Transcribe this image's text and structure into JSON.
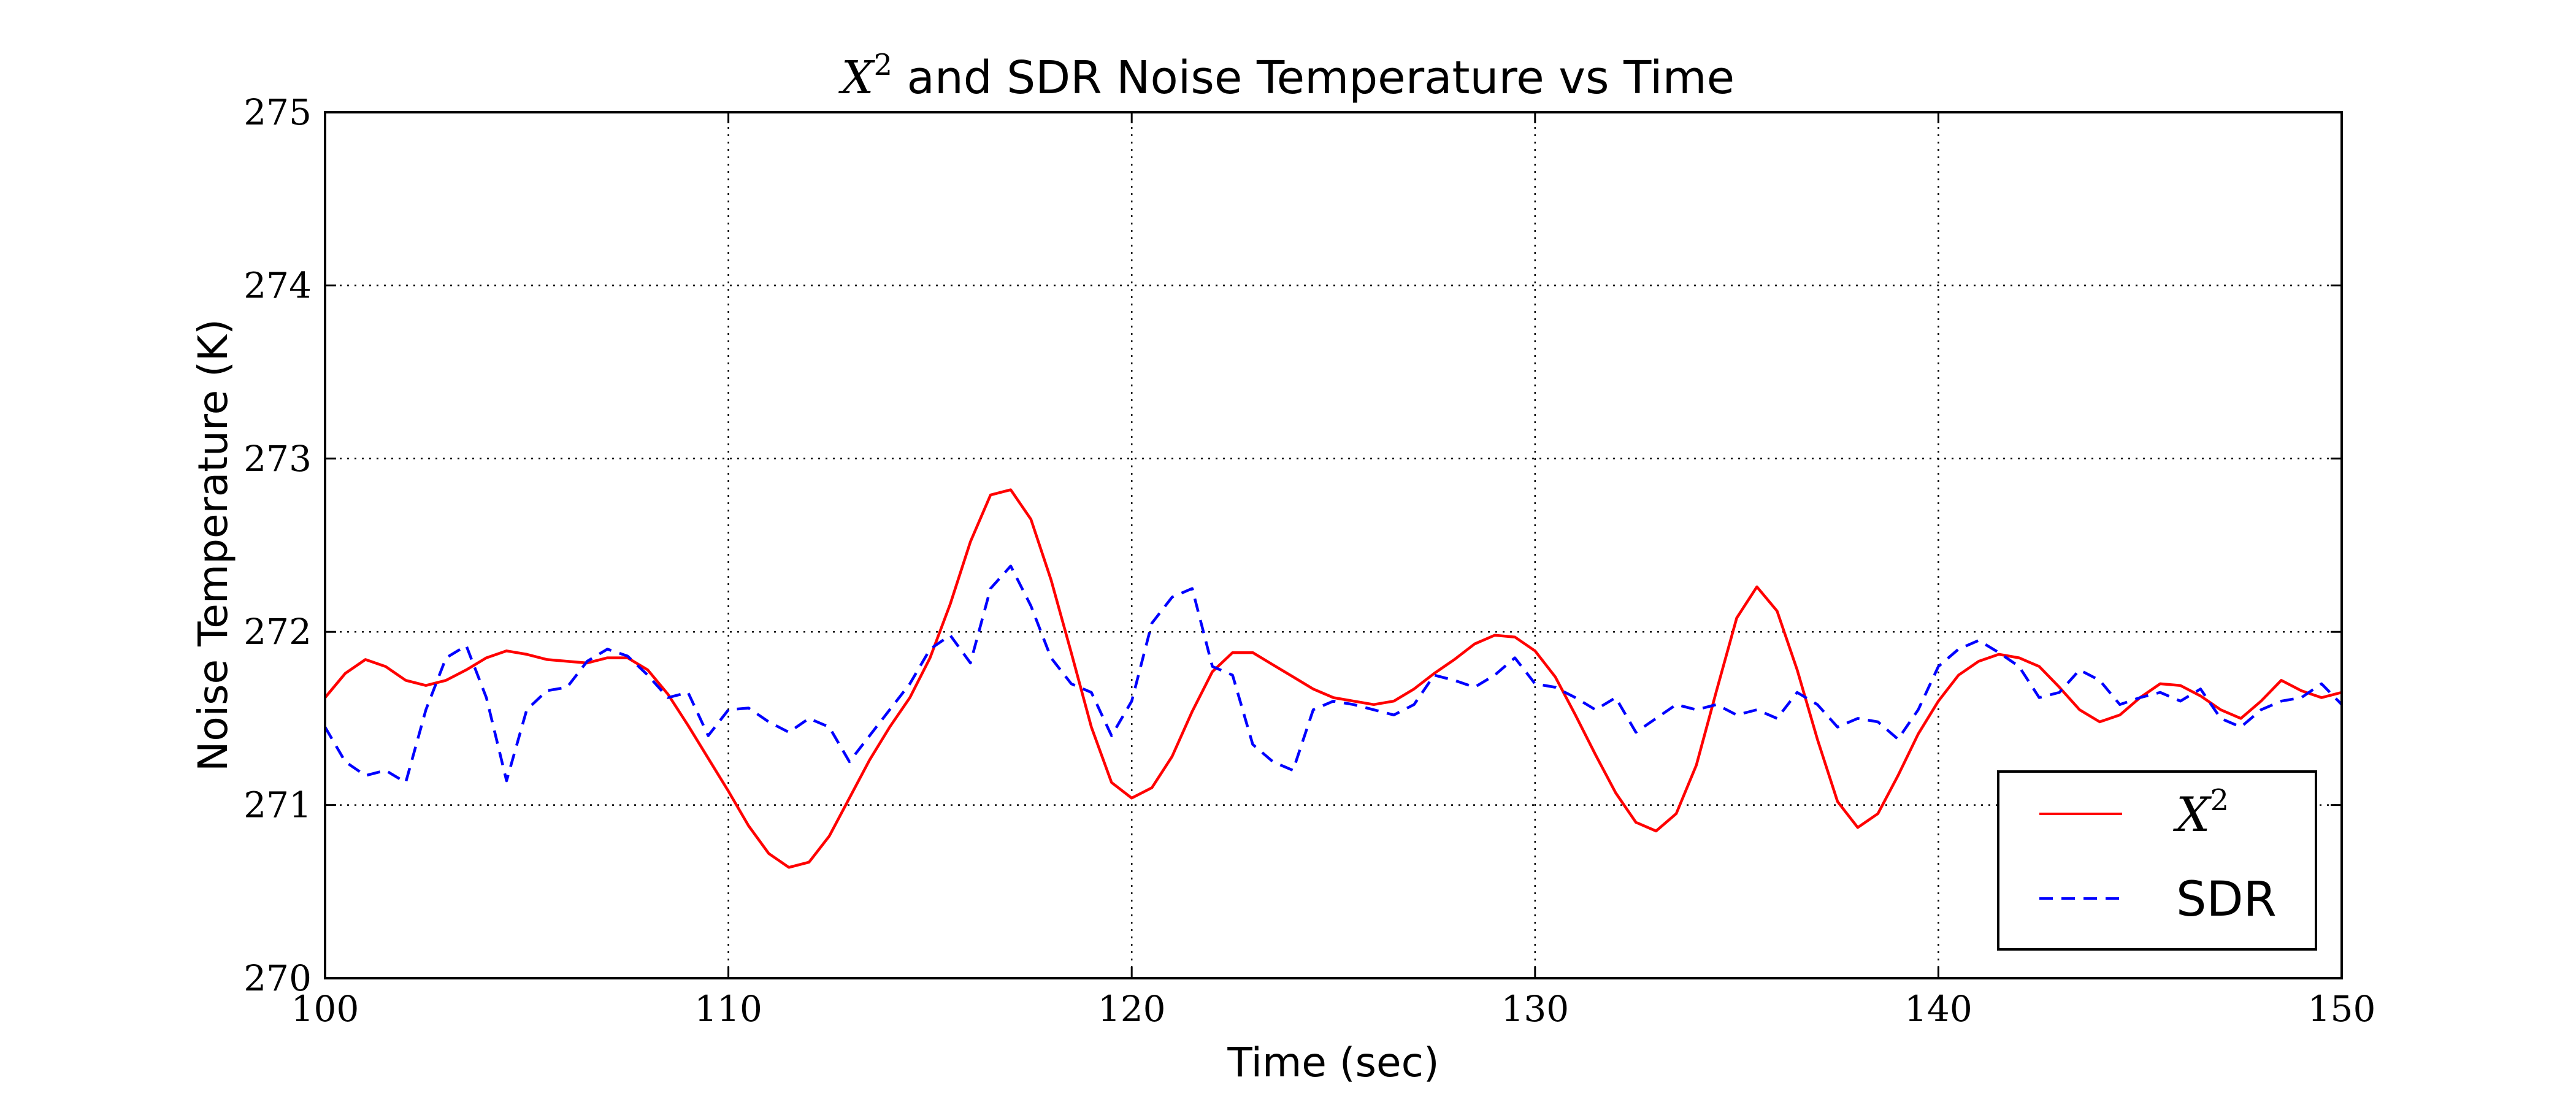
{
  "chart_data": {
    "type": "line",
    "title": {
      "math_base": "X",
      "math_sup": "2",
      "rest": " and SDR Noise Temperature vs Time"
    },
    "xlabel": "Time (sec)",
    "ylabel": "Noise Temperature (K)",
    "xlim": [
      100,
      150
    ],
    "ylim": [
      270,
      275
    ],
    "xticks": [
      100,
      110,
      120,
      130,
      140,
      150
    ],
    "xtick_labels": [
      "100",
      "110",
      "120",
      "130",
      "140",
      "150"
    ],
    "yticks": [
      270,
      271,
      272,
      273,
      274,
      275
    ],
    "ytick_labels": [
      "270",
      "271",
      "272",
      "273",
      "274",
      "275"
    ],
    "grid": true,
    "legend_placement": "lower-right",
    "series": [
      {
        "name": "X^2",
        "legend_base": "X",
        "legend_sup": "2",
        "color": "#ff0000",
        "style": "solid",
        "x": [
          100,
          100.5,
          101,
          101.5,
          102,
          102.5,
          103,
          103.5,
          104,
          104.5,
          105,
          105.5,
          106,
          106.5,
          107,
          107.5,
          108,
          108.5,
          109,
          109.5,
          110,
          110.5,
          111,
          111.5,
          112,
          112.5,
          113,
          113.5,
          114,
          114.5,
          115,
          115.5,
          116,
          116.5,
          117,
          117.5,
          118,
          118.5,
          119,
          119.5,
          120,
          120.5,
          121,
          121.5,
          122,
          122.5,
          123,
          123.5,
          124,
          124.5,
          125,
          125.5,
          126,
          126.5,
          127,
          127.5,
          128,
          128.5,
          129,
          129.5,
          130,
          130.5,
          131,
          131.5,
          132,
          132.5,
          133,
          133.5,
          134,
          134.5,
          135,
          135.5,
          136,
          136.5,
          137,
          137.5,
          138,
          138.5,
          139,
          139.5,
          140,
          140.5,
          141,
          141.5,
          142,
          142.5,
          143,
          143.5,
          144,
          144.5,
          145,
          145.5,
          146,
          146.5,
          147,
          147.5,
          148,
          148.5,
          149,
          149.5,
          150
        ],
        "y": [
          271.62,
          271.76,
          271.84,
          271.8,
          271.72,
          271.69,
          271.72,
          271.78,
          271.85,
          271.89,
          271.87,
          271.84,
          271.83,
          271.82,
          271.85,
          271.85,
          271.78,
          271.64,
          271.46,
          271.27,
          271.08,
          270.88,
          270.72,
          270.64,
          270.67,
          270.82,
          271.04,
          271.26,
          271.45,
          271.62,
          271.85,
          272.16,
          272.52,
          272.79,
          272.82,
          272.65,
          272.3,
          271.88,
          271.45,
          271.13,
          271.04,
          271.1,
          271.28,
          271.54,
          271.77,
          271.88,
          271.88,
          271.81,
          271.74,
          271.67,
          271.62,
          271.6,
          271.58,
          271.6,
          271.67,
          271.76,
          271.84,
          271.93,
          271.98,
          271.97,
          271.89,
          271.74,
          271.52,
          271.29,
          271.07,
          270.9,
          270.85,
          270.95,
          271.23,
          271.66,
          272.08,
          272.26,
          272.12,
          271.78,
          271.38,
          271.02,
          270.87,
          270.95,
          271.17,
          271.41,
          271.6,
          271.75,
          271.83,
          271.87,
          271.85,
          271.8,
          271.68,
          271.55,
          271.48,
          271.52,
          271.62,
          271.7,
          271.69,
          271.63,
          271.55,
          271.5,
          271.6,
          271.72,
          271.66,
          271.62,
          271.65
        ]
      },
      {
        "name": "SDR",
        "color": "#0000ff",
        "style": "dashed",
        "x": [
          100,
          100.5,
          101,
          101.5,
          102,
          102.5,
          103,
          103.5,
          104,
          104.5,
          105,
          105.5,
          106,
          106.5,
          107,
          107.5,
          108,
          108.5,
          109,
          109.5,
          110,
          110.5,
          111,
          111.5,
          112,
          112.5,
          113,
          113.5,
          114,
          114.5,
          115,
          115.5,
          116,
          116.5,
          117,
          117.5,
          118,
          118.5,
          119,
          119.5,
          120,
          120.5,
          121,
          121.5,
          122,
          122.5,
          123,
          123.5,
          124,
          124.5,
          125,
          125.5,
          126,
          126.5,
          127,
          127.5,
          128,
          128.5,
          129,
          129.5,
          130,
          130.5,
          131,
          131.5,
          132,
          132.5,
          133,
          133.5,
          134,
          134.5,
          135,
          135.5,
          136,
          136.5,
          137,
          137.5,
          138,
          138.5,
          139,
          139.5,
          140,
          140.5,
          141,
          141.5,
          142,
          142.5,
          143,
          143.5,
          144,
          144.5,
          145,
          145.5,
          146,
          146.5,
          147,
          147.5,
          148,
          148.5,
          149,
          149.5,
          150
        ],
        "y": [
          271.45,
          271.25,
          271.17,
          271.2,
          271.13,
          271.55,
          271.85,
          271.92,
          271.62,
          271.14,
          271.55,
          271.66,
          271.68,
          271.83,
          271.9,
          271.86,
          271.75,
          271.62,
          271.65,
          271.4,
          271.55,
          271.56,
          271.48,
          271.42,
          271.5,
          271.45,
          271.25,
          271.4,
          271.55,
          271.7,
          271.9,
          271.98,
          271.82,
          272.25,
          272.38,
          272.15,
          271.85,
          271.7,
          271.65,
          271.4,
          271.6,
          272.05,
          272.2,
          272.25,
          271.8,
          271.75,
          271.35,
          271.25,
          271.2,
          271.55,
          271.6,
          271.58,
          271.55,
          271.52,
          271.58,
          271.75,
          271.72,
          271.68,
          271.75,
          271.85,
          271.7,
          271.68,
          271.62,
          271.55,
          271.62,
          271.42,
          271.5,
          271.58,
          271.55,
          271.58,
          271.52,
          271.55,
          271.5,
          271.65,
          271.58,
          271.45,
          271.5,
          271.48,
          271.38,
          271.55,
          271.8,
          271.9,
          271.95,
          271.88,
          271.8,
          271.62,
          271.65,
          271.78,
          271.72,
          271.58,
          271.62,
          271.65,
          271.6,
          271.67,
          271.5,
          271.45,
          271.55,
          271.6,
          271.62,
          271.7,
          271.58
        ]
      }
    ]
  }
}
